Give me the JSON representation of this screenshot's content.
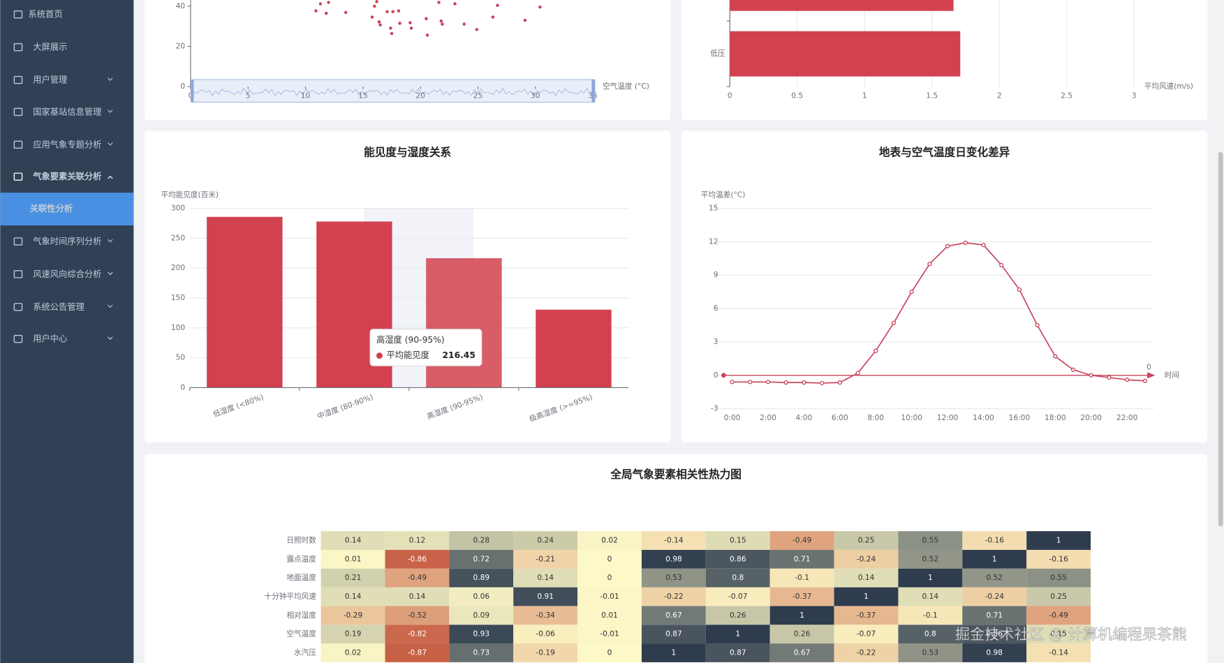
{
  "sidebar": {
    "items": [
      "系统首页",
      "大屏展示",
      "用户管理",
      "国家基站信息管理",
      "应用气象专题分析",
      "气象要素关联分析",
      "气象时间序列分析",
      "风速风向综合分析",
      "系统公告管理",
      "用户中心"
    ],
    "submenu": [
      "关联性分析"
    ]
  },
  "chart_data": [
    {
      "type": "scatter",
      "xlabel": "空气温度 (°C)",
      "color": "#c9435a",
      "x": [
        10.9,
        11.3,
        11.8,
        12.0,
        13.5,
        15.8,
        16.0,
        16.2,
        16.5,
        17.1,
        17.6,
        18.1,
        17.4,
        17.5,
        18.2,
        19.1,
        19.2,
        20.5,
        20.6,
        21.6,
        21.8,
        23.0,
        23.8,
        24.9,
        26.3,
        26.7,
        29.1,
        30.4,
        16.4,
        21.9
      ],
      "values": [
        37.7,
        41.2,
        36.5,
        41.9,
        36.9,
        34.6,
        40.0,
        42.3,
        30.7,
        37.3,
        37.3,
        37.7,
        29.1,
        26.4,
        31.5,
        31.8,
        29.1,
        33.8,
        25.6,
        41.9,
        32.6,
        41.2,
        31.1,
        28.4,
        34.6,
        40.4,
        33.0,
        39.6,
        32.2,
        31.1
      ],
      "xlim": [
        0,
        35
      ],
      "xticks": [
        0,
        5,
        10,
        15,
        20,
        25,
        30,
        35
      ],
      "ylim": [
        0,
        45
      ],
      "yticks": [
        0,
        20,
        40
      ]
    },
    {
      "type": "hbar",
      "xlabel": "平均风速(m/s)",
      "color": "#d2414f",
      "categories": [
        null,
        "低压"
      ],
      "values": [
        1.66,
        1.71
      ],
      "xlim": [
        0,
        3
      ],
      "xticks": [
        0,
        0.5,
        1,
        1.5,
        2,
        2.5,
        3
      ],
      "grid": true
    },
    {
      "type": "bar",
      "title": "能见度与湿度关系",
      "ylabel": "平均能见度(百米)",
      "categories": [
        "低湿度 (<80%)",
        "中湿度 (80-90%)",
        "高湿度 (90-95%)",
        "极高湿度 (>=95%)"
      ],
      "series": [
        {
          "name": "平均能见度",
          "color": "#d2414f",
          "values": [
            285.6,
            277.8,
            216.45,
            130.4
          ]
        }
      ],
      "ylim": [
        0,
        300
      ],
      "yticks": [
        0,
        50,
        100,
        150,
        200,
        250,
        300
      ],
      "grid": true,
      "tooltip_index": 2
    },
    {
      "type": "line",
      "title": "地表与空气温度日变化差异",
      "ylabel": "平均温差(°C)",
      "xlabel": "时间",
      "color": "#c8455e",
      "categories": [
        "0:00",
        null,
        "2:00",
        null,
        "4:00",
        null,
        "6:00",
        null,
        "8:00",
        null,
        "10:00",
        null,
        "12:00",
        null,
        "14:00",
        null,
        "16:00",
        null,
        "18:00",
        null,
        "20:00",
        null,
        "22:00",
        null
      ],
      "values": [
        -0.6,
        -0.6,
        -0.6,
        -0.65,
        -0.65,
        -0.7,
        -0.65,
        0.2,
        2.2,
        4.7,
        7.5,
        10.0,
        11.6,
        11.9,
        11.7,
        9.9,
        7.7,
        4.5,
        1.7,
        0.5,
        0.0,
        -0.2,
        -0.4,
        -0.5
      ],
      "ylim": [
        -3,
        15
      ],
      "yticks": [
        -3,
        0,
        3,
        6,
        9,
        12,
        15
      ],
      "grid": true,
      "markline": 0
    },
    {
      "type": "heatmap",
      "title": "全局气象要素相关性热力图",
      "rows": [
        "日照时数",
        "露点温度",
        "地面温度",
        "十分钟平均风速",
        "相对湿度",
        "空气温度",
        "水汽压"
      ],
      "values": [
        [
          0.14,
          0.12,
          0.28,
          0.24,
          0.02,
          -0.14,
          0.15,
          -0.49,
          0.25,
          0.55,
          -0.16,
          1
        ],
        [
          0.01,
          -0.86,
          0.72,
          -0.21,
          0,
          0.98,
          0.86,
          0.71,
          -0.24,
          0.52,
          1,
          -0.16
        ],
        [
          0.21,
          -0.49,
          0.89,
          0.14,
          0,
          0.53,
          0.8,
          -0.1,
          0.14,
          1,
          0.52,
          0.55
        ],
        [
          0.14,
          0.14,
          0.06,
          0.91,
          -0.01,
          -0.22,
          -0.07,
          -0.37,
          1,
          0.14,
          -0.24,
          0.25
        ],
        [
          -0.29,
          -0.52,
          0.09,
          -0.34,
          0.01,
          0.67,
          0.26,
          1,
          -0.37,
          -0.1,
          0.71,
          -0.49
        ],
        [
          0.19,
          -0.82,
          0.93,
          -0.06,
          -0.01,
          0.87,
          1,
          0.26,
          -0.07,
          0.8,
          0.86,
          0.15
        ],
        [
          0.02,
          -0.87,
          0.73,
          -0.19,
          0,
          1,
          0.87,
          0.67,
          -0.22,
          0.53,
          0.98,
          -0.14
        ]
      ],
      "visual_map": {
        "min": -1,
        "max": 1,
        "colors": [
          "#bf4a33",
          "#fdf8c7",
          "#2e3c4e"
        ]
      }
    }
  ],
  "watermark": "掘金技术社区 @ 计算机编程果茶熊"
}
